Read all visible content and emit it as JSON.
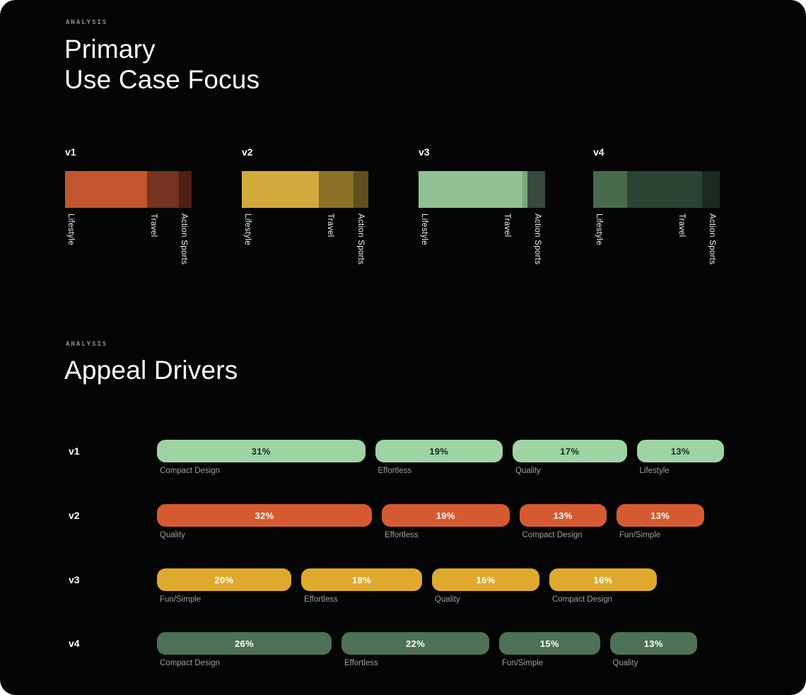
{
  "sections": {
    "use_case": {
      "eyebrow": "ANALYSIS",
      "title_line1": "Primary",
      "title_line2": "Use Case Focus"
    },
    "appeal": {
      "eyebrow": "ANALYSIS",
      "title": "Appeal Drivers"
    }
  },
  "chart_data": [
    {
      "type": "bar",
      "variant": "stacked-horizontal",
      "title": "Primary Use Case Focus",
      "categories": [
        "Lifestyle",
        "Travel",
        "Action Sports"
      ],
      "units": "percent of bar width (estimated)",
      "series": [
        {
          "name": "v1",
          "values": [
            65,
            25,
            10
          ],
          "colors": [
            "#c1552f",
            "#74341f",
            "#4d2013"
          ]
        },
        {
          "name": "v2",
          "values": [
            61,
            27,
            12
          ],
          "colors": [
            "#d2a93c",
            "#8a7127",
            "#5f4e1e"
          ]
        },
        {
          "name": "v3",
          "values": [
            82,
            4,
            14
          ],
          "colors": [
            "#90c295",
            "#7aa87f",
            "#37493c"
          ]
        },
        {
          "name": "v4",
          "values": [
            27,
            59,
            14
          ],
          "colors": [
            "#4a6a4e",
            "#2a4434",
            "#1b2b21"
          ]
        }
      ],
      "legend_position": "below-bars-rotated",
      "grid": false
    },
    {
      "type": "bar",
      "variant": "proportional-pills",
      "title": "Appeal Drivers",
      "units": "percent",
      "rows": [
        {
          "name": "v1",
          "color": "#9ed4a4",
          "value_color": "#163019",
          "bars": [
            {
              "label": "Compact Design",
              "value": 31,
              "display": "31%"
            },
            {
              "label": "Effortless",
              "value": 19,
              "display": "19%"
            },
            {
              "label": "Quality",
              "value": 17,
              "display": "17%"
            },
            {
              "label": "Lifestyle",
              "value": 13,
              "display": "13%"
            }
          ]
        },
        {
          "name": "v2",
          "color": "#d65a31",
          "value_color": "#ffffff",
          "bars": [
            {
              "label": "Quality",
              "value": 32,
              "display": "32%"
            },
            {
              "label": "Effortless",
              "value": 19,
              "display": "19%"
            },
            {
              "label": "Compact Design",
              "value": 13,
              "display": "13%"
            },
            {
              "label": "Fun/Simple",
              "value": 13,
              "display": "13%"
            }
          ]
        },
        {
          "name": "v3",
          "color": "#dfa92e",
          "value_color": "#ffffff",
          "bars": [
            {
              "label": "Fun/Simple",
              "value": 20,
              "display": "20%"
            },
            {
              "label": "Effortless",
              "value": 18,
              "display": "18%"
            },
            {
              "label": "Quality",
              "value": 16,
              "display": "16%"
            },
            {
              "label": "Compact Design",
              "value": 16,
              "display": "16%"
            }
          ]
        },
        {
          "name": "v4",
          "color": "#4c7155",
          "value_color": "#ffffff",
          "bars": [
            {
              "label": "Compact Design",
              "value": 26,
              "display": "26%"
            },
            {
              "label": "Effortless",
              "value": 22,
              "display": "22%"
            },
            {
              "label": "Fun/Simple",
              "value": 15,
              "display": "15%"
            },
            {
              "label": "Quality",
              "value": 13,
              "display": "13%"
            }
          ]
        }
      ],
      "grid": false
    }
  ]
}
